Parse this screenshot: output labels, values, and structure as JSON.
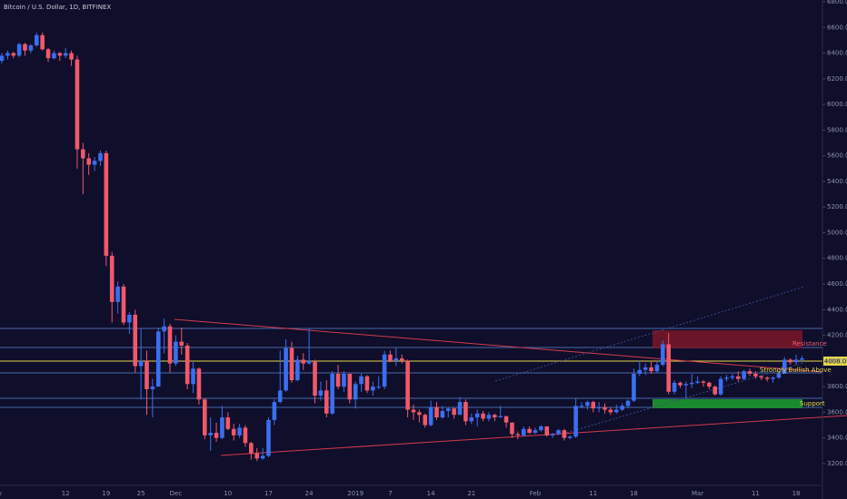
{
  "chart_data": {
    "type": "candlestick",
    "title": "Bitcoin / U.S. Dollar, 1D, BITFINEX",
    "up_color": "#3a6ff0",
    "down_color": "#f0596a",
    "ylim": [
      3030,
      6814
    ],
    "yticks": [
      {
        "value": 3200,
        "label": "3200.0"
      },
      {
        "value": 3400,
        "label": "3400.0"
      },
      {
        "value": 3600,
        "label": "3600.0"
      },
      {
        "value": 3800,
        "label": "3800.0"
      },
      {
        "value": 4000,
        "label": "4000.0"
      },
      {
        "value": 4200,
        "label": "4200.0"
      },
      {
        "value": 4400,
        "label": "4400.0"
      },
      {
        "value": 4600,
        "label": "4600.0"
      },
      {
        "value": 4800,
        "label": "4800.0"
      },
      {
        "value": 5000,
        "label": "5000.0"
      },
      {
        "value": 5200,
        "label": "5200.0"
      },
      {
        "value": 5400,
        "label": "5400.0"
      },
      {
        "value": 5600,
        "label": "5600.0"
      },
      {
        "value": 5800,
        "label": "5800.0"
      },
      {
        "value": 6000,
        "label": "6000.0"
      },
      {
        "value": 6200,
        "label": "6200.0"
      },
      {
        "value": 6400,
        "label": "6400.0"
      },
      {
        "value": 6600,
        "label": "6600.0"
      },
      {
        "value": 6800,
        "label": "6800.0"
      }
    ],
    "price_label": "4008.0",
    "annotations": [
      "Resistance",
      "Strongly Bullish Above",
      "Support"
    ],
    "categories": [
      "Nov",
      null,
      null,
      null,
      null,
      null,
      null,
      null,
      null,
      null,
      null,
      "12",
      null,
      null,
      null,
      null,
      null,
      null,
      "19",
      null,
      null,
      null,
      null,
      null,
      "25",
      null,
      null,
      null,
      null,
      null,
      "Dec",
      null,
      null,
      null,
      null,
      null,
      null,
      null,
      null,
      "10",
      null,
      null,
      null,
      null,
      null,
      null,
      "17",
      null,
      null,
      null,
      null,
      null,
      null,
      "24",
      null,
      null,
      null,
      null,
      null,
      null,
      null,
      "2019",
      null,
      null,
      null,
      null,
      null,
      "7",
      null,
      null,
      null,
      null,
      null,
      null,
      "14",
      null,
      null,
      null,
      null,
      null,
      null,
      "21",
      null,
      null,
      null,
      null,
      null,
      null,
      null,
      null,
      null,
      null,
      "Feb",
      null,
      null,
      null,
      null,
      null,
      null,
      null,
      null,
      null,
      "11",
      null,
      null,
      null,
      null,
      null,
      null,
      "18",
      null,
      null,
      null,
      null,
      null,
      null,
      null,
      null,
      null,
      null,
      "Mar",
      null,
      null,
      null,
      null,
      null,
      null,
      null,
      null,
      null,
      "11",
      null,
      null,
      null,
      null,
      null,
      null,
      "18",
      null
    ],
    "ohlc": [
      [
        6340,
        6400,
        6320,
        6380
      ],
      [
        6380,
        6420,
        6350,
        6400
      ],
      [
        6400,
        6410,
        6360,
        6380
      ],
      [
        6380,
        6480,
        6370,
        6470
      ],
      [
        6470,
        6480,
        6380,
        6420
      ],
      [
        6420,
        6470,
        6400,
        6460
      ],
      [
        6460,
        6560,
        6450,
        6540
      ],
      [
        6540,
        6560,
        6420,
        6430
      ],
      [
        6430,
        6440,
        6330,
        6360
      ],
      [
        6360,
        6420,
        6350,
        6400
      ],
      [
        6400,
        6410,
        6340,
        6380
      ],
      [
        6380,
        6440,
        6360,
        6400
      ],
      [
        6400,
        6420,
        6300,
        6350
      ],
      [
        6350,
        6380,
        5500,
        5650
      ],
      [
        5650,
        5700,
        5300,
        5580
      ],
      [
        5580,
        5620,
        5450,
        5530
      ],
      [
        5530,
        5590,
        5480,
        5560
      ],
      [
        5560,
        5640,
        5520,
        5620
      ],
      [
        5620,
        5640,
        4740,
        4820
      ],
      [
        4820,
        4850,
        4300,
        4460
      ],
      [
        4460,
        4620,
        4370,
        4580
      ],
      [
        4580,
        4600,
        4280,
        4300
      ],
      [
        4300,
        4380,
        4210,
        4360
      ],
      [
        4360,
        4400,
        3910,
        3960
      ],
      [
        3960,
        4250,
        3700,
        4000
      ],
      [
        4000,
        4080,
        3580,
        3780
      ],
      [
        3780,
        3860,
        3560,
        3800
      ],
      [
        3800,
        4260,
        3800,
        4230
      ],
      [
        4230,
        4330,
        4060,
        4270
      ],
      [
        4270,
        4290,
        3910,
        3980
      ],
      [
        3980,
        4200,
        3960,
        4150
      ],
      [
        4150,
        4260,
        4050,
        4120
      ],
      [
        4120,
        4140,
        3780,
        3820
      ],
      [
        3820,
        3990,
        3750,
        3940
      ],
      [
        3940,
        3950,
        3660,
        3700
      ],
      [
        3700,
        3710,
        3390,
        3420
      ],
      [
        3420,
        3560,
        3300,
        3440
      ],
      [
        3440,
        3520,
        3370,
        3400
      ],
      [
        3400,
        3650,
        3390,
        3560
      ],
      [
        3560,
        3600,
        3460,
        3470
      ],
      [
        3470,
        3510,
        3380,
        3420
      ],
      [
        3420,
        3510,
        3400,
        3480
      ],
      [
        3480,
        3500,
        3330,
        3360
      ],
      [
        3360,
        3370,
        3230,
        3280
      ],
      [
        3280,
        3320,
        3220,
        3240
      ],
      [
        3240,
        3320,
        3230,
        3260
      ],
      [
        3260,
        3560,
        3250,
        3540
      ],
      [
        3540,
        3700,
        3500,
        3680
      ],
      [
        3680,
        4080,
        3670,
        3770
      ],
      [
        3770,
        4170,
        3760,
        4100
      ],
      [
        4100,
        4150,
        3830,
        3850
      ],
      [
        3850,
        4040,
        3840,
        4010
      ],
      [
        4010,
        4060,
        3930,
        3980
      ],
      [
        3980,
        4250,
        3970,
        4000
      ],
      [
        4000,
        4010,
        3670,
        3730
      ],
      [
        3730,
        3840,
        3690,
        3770
      ],
      [
        3770,
        3850,
        3560,
        3590
      ],
      [
        3590,
        3920,
        3580,
        3900
      ],
      [
        3900,
        3970,
        3780,
        3800
      ],
      [
        3800,
        3920,
        3760,
        3900
      ],
      [
        3900,
        3900,
        3670,
        3700
      ],
      [
        3700,
        3840,
        3630,
        3820
      ],
      [
        3820,
        3900,
        3760,
        3880
      ],
      [
        3880,
        3890,
        3750,
        3770
      ],
      [
        3770,
        3840,
        3730,
        3800
      ],
      [
        3800,
        3880,
        3780,
        3800
      ],
      [
        3800,
        4080,
        3780,
        4050
      ],
      [
        4050,
        4080,
        3990,
        4000
      ],
      [
        4000,
        4100,
        3960,
        4020
      ],
      [
        4020,
        4050,
        3980,
        4000
      ],
      [
        4000,
        4010,
        3560,
        3620
      ],
      [
        3620,
        3660,
        3540,
        3600
      ],
      [
        3600,
        3620,
        3520,
        3580
      ],
      [
        3580,
        3590,
        3480,
        3500
      ],
      [
        3500,
        3690,
        3490,
        3640
      ],
      [
        3640,
        3680,
        3540,
        3560
      ],
      [
        3560,
        3650,
        3550,
        3610
      ],
      [
        3610,
        3640,
        3560,
        3630
      ],
      [
        3630,
        3640,
        3550,
        3580
      ],
      [
        3580,
        3720,
        3580,
        3680
      ],
      [
        3680,
        3700,
        3500,
        3530
      ],
      [
        3530,
        3590,
        3510,
        3560
      ],
      [
        3560,
        3620,
        3490,
        3590
      ],
      [
        3590,
        3610,
        3530,
        3550
      ],
      [
        3550,
        3600,
        3530,
        3580
      ],
      [
        3580,
        3590,
        3530,
        3560
      ],
      [
        3560,
        3650,
        3560,
        3570
      ],
      [
        3570,
        3570,
        3480,
        3520
      ],
      [
        3520,
        3520,
        3400,
        3430
      ],
      [
        3430,
        3450,
        3390,
        3420
      ],
      [
        3420,
        3490,
        3410,
        3470
      ],
      [
        3470,
        3490,
        3430,
        3440
      ],
      [
        3440,
        3480,
        3430,
        3460
      ],
      [
        3460,
        3500,
        3450,
        3490
      ],
      [
        3490,
        3490,
        3410,
        3420
      ],
      [
        3420,
        3440,
        3400,
        3430
      ],
      [
        3430,
        3470,
        3420,
        3460
      ],
      [
        3460,
        3470,
        3380,
        3400
      ],
      [
        3400,
        3420,
        3390,
        3410
      ],
      [
        3410,
        3710,
        3400,
        3650
      ],
      [
        3650,
        3680,
        3630,
        3650
      ],
      [
        3650,
        3690,
        3620,
        3680
      ],
      [
        3680,
        3690,
        3600,
        3630
      ],
      [
        3630,
        3680,
        3600,
        3640
      ],
      [
        3640,
        3670,
        3590,
        3620
      ],
      [
        3620,
        3640,
        3580,
        3600
      ],
      [
        3600,
        3660,
        3590,
        3620
      ],
      [
        3620,
        3670,
        3610,
        3650
      ],
      [
        3650,
        3700,
        3630,
        3690
      ],
      [
        3690,
        3940,
        3680,
        3900
      ],
      [
        3900,
        4000,
        3880,
        3930
      ],
      [
        3930,
        3980,
        3890,
        3950
      ],
      [
        3950,
        4000,
        3900,
        3920
      ],
      [
        3920,
        4000,
        3910,
        3970
      ],
      [
        3970,
        4160,
        3960,
        4130
      ],
      [
        4130,
        4220,
        3740,
        3760
      ],
      [
        3760,
        3850,
        3740,
        3830
      ],
      [
        3830,
        3840,
        3790,
        3810
      ],
      [
        3810,
        3840,
        3710,
        3820
      ],
      [
        3820,
        3900,
        3790,
        3830
      ],
      [
        3830,
        3880,
        3820,
        3840
      ],
      [
        3840,
        3850,
        3800,
        3830
      ],
      [
        3830,
        3840,
        3780,
        3800
      ],
      [
        3800,
        3810,
        3730,
        3740
      ],
      [
        3740,
        3880,
        3730,
        3860
      ],
      [
        3860,
        3890,
        3840,
        3870
      ],
      [
        3870,
        3900,
        3850,
        3880
      ],
      [
        3880,
        3920,
        3840,
        3860
      ],
      [
        3860,
        3930,
        3850,
        3920
      ],
      [
        3920,
        3940,
        3880,
        3900
      ],
      [
        3900,
        3920,
        3860,
        3880
      ],
      [
        3880,
        3890,
        3850,
        3870
      ],
      [
        3870,
        3880,
        3840,
        3860
      ],
      [
        3860,
        3880,
        3830,
        3870
      ],
      [
        3870,
        3920,
        3860,
        3900
      ],
      [
        3900,
        4030,
        3900,
        4010
      ],
      [
        4010,
        4020,
        3970,
        3990
      ],
      [
        3990,
        4050,
        3970,
        4010
      ],
      [
        4010,
        4040,
        3990,
        4020
      ]
    ]
  }
}
